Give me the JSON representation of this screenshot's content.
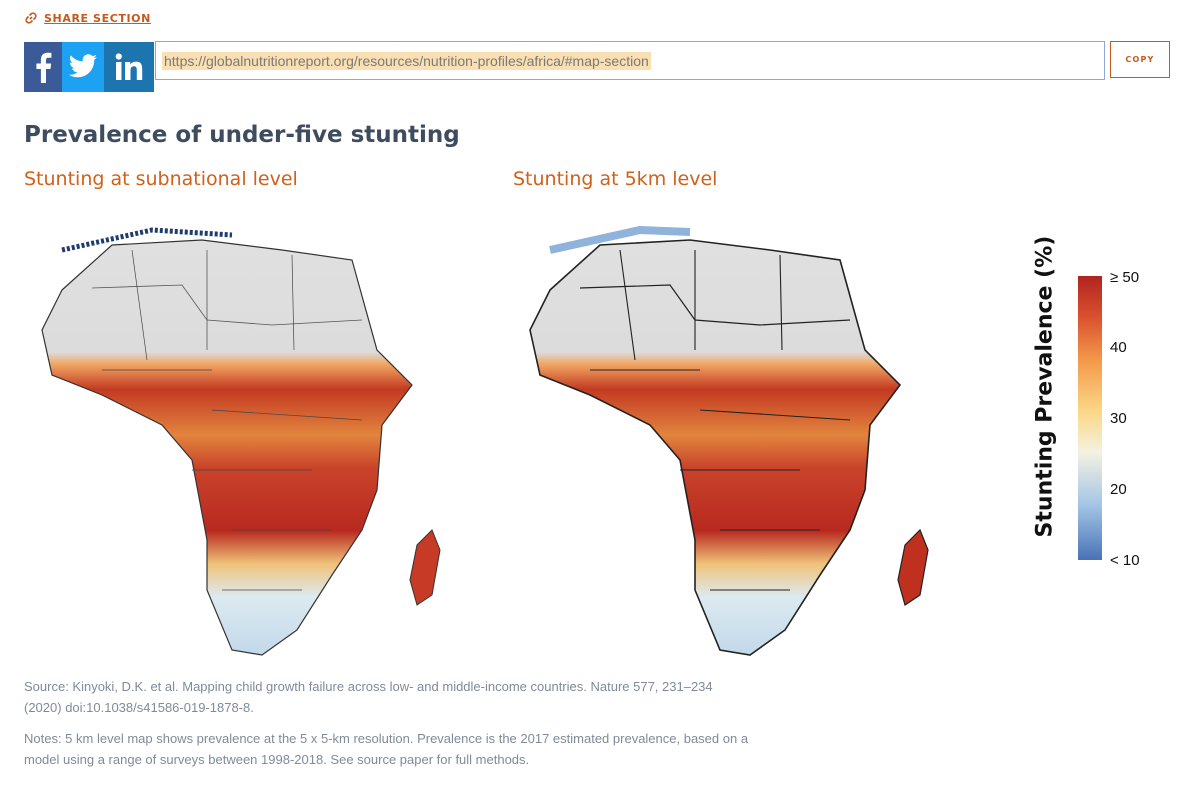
{
  "share": {
    "label": "SHARE SECTION",
    "copy_label": "COPY",
    "url": "https://globalnutritionreport.org/resources/nutrition-profiles/africa/#map-section"
  },
  "social": [
    "facebook-icon",
    "twitter-icon",
    "linkedin-icon"
  ],
  "section": {
    "title": "Prevalence of under-five stunting",
    "maps": [
      {
        "title": "Stunting at subnational level"
      },
      {
        "title": "Stunting at 5km level"
      }
    ]
  },
  "legend": {
    "title": "Stunting Prevalence (%)",
    "ticks": [
      "≥ 50",
      "40",
      "30",
      "20",
      "< 10"
    ],
    "colors": [
      "#b0241f",
      "#d94f2d",
      "#f49a4c",
      "#fbd888",
      "#f4f1e0",
      "#a7c7e6",
      "#4a72b6"
    ]
  },
  "notes": {
    "source": "Source: Kinyoki, D.K. et al. Mapping child growth failure across low- and middle-income countries. Nature 577, 231–234 (2020) doi:10.1038/s41586-019-1878-8.",
    "methods": "Notes: 5 km level map shows prevalence at the 5 x 5-km resolution. Prevalence is the 2017 estimated prevalence, based on a model using a range of surveys between 1998-2018. See source paper for full methods."
  },
  "colors": {
    "accent": "#c8581c",
    "title": "#3e4c5f",
    "facebook": "#3a5a98",
    "twitter": "#1da1f2",
    "linkedin": "#1d75b0"
  }
}
